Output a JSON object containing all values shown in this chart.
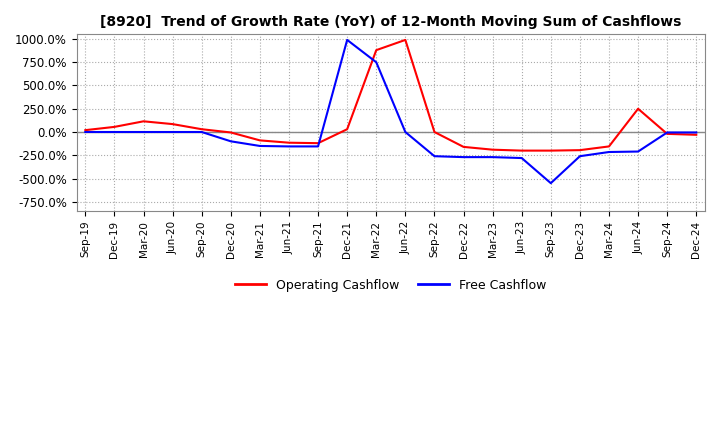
{
  "title": "[8920]  Trend of Growth Rate (YoY) of 12-Month Moving Sum of Cashflows",
  "ylim": [
    -850,
    1050
  ],
  "yticks": [
    -750,
    -500,
    -250,
    0,
    250,
    500,
    750,
    1000
  ],
  "ytick_labels": [
    "-750.0%",
    "-500.0%",
    "-250.0%",
    "0.0%",
    "250.0%",
    "500.0%",
    "750.0%",
    "1000.0%"
  ],
  "background_color": "#ffffff",
  "plot_bg_color": "#ffffff",
  "grid_color": "#aaaaaa",
  "operating_color": "#ff0000",
  "free_color": "#0000ff",
  "x_labels": [
    "Sep-19",
    "Dec-19",
    "Mar-20",
    "Jun-20",
    "Sep-20",
    "Dec-20",
    "Mar-21",
    "Jun-21",
    "Sep-21",
    "Dec-21",
    "Mar-22",
    "Jun-22",
    "Sep-22",
    "Dec-22",
    "Mar-23",
    "Jun-23",
    "Sep-23",
    "Dec-23",
    "Mar-24",
    "Jun-24",
    "Sep-24",
    "Dec-24"
  ],
  "operating_cashflow": [
    20,
    55,
    115,
    85,
    30,
    -5,
    -90,
    -115,
    -120,
    30,
    880,
    990,
    0,
    -160,
    -190,
    -200,
    -200,
    -195,
    -155,
    250,
    -20,
    -30
  ],
  "free_cashflow": [
    0,
    0,
    0,
    0,
    0,
    -100,
    -150,
    -155,
    -155,
    990,
    750,
    0,
    -260,
    -270,
    -270,
    -280,
    -550,
    -260,
    -215,
    -210,
    -5,
    -5
  ]
}
